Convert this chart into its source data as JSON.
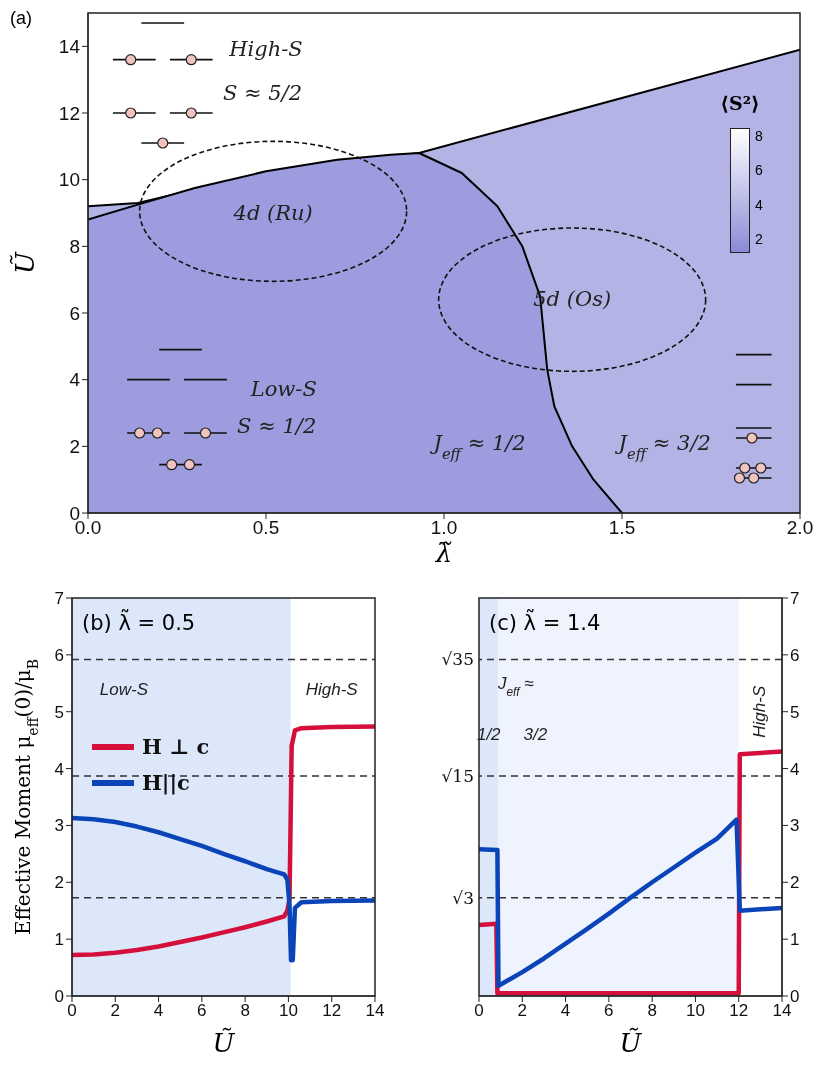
{
  "chart_data": [
    {
      "type": "area",
      "title": "(a)",
      "xlabel": "λ̃",
      "ylabel": "Ũ",
      "xlim": [
        0,
        2
      ],
      "ylim": [
        0,
        15
      ],
      "xticks": [
        {
          "value": 0,
          "label": "0.0"
        },
        {
          "value": 0.5,
          "label": "0.5"
        },
        {
          "value": 1,
          "label": "1.0"
        },
        {
          "value": 1.5,
          "label": "1.5"
        },
        {
          "value": 2,
          "label": "2.0"
        }
      ],
      "yticks": [
        0,
        2,
        4,
        6,
        8,
        10,
        12,
        14
      ],
      "series": [
        {
          "color": "#b3b3e6",
          "x": [
            0,
            0.14,
            0.5,
            0.93,
            2
          ],
          "values": [
            9.2,
            9.3,
            10.2,
            10.8,
            13.9
          ]
        },
        {
          "color": "#9c9cde",
          "x": [
            0,
            0.14,
            0.3,
            0.5,
            0.7,
            0.85,
            0.93,
            1.05,
            1.15,
            1.22,
            1.27,
            1.29,
            1.31,
            1.36,
            1.42,
            1.5
          ],
          "values": [
            8.8,
            9.25,
            9.75,
            10.25,
            10.6,
            10.75,
            10.8,
            10.2,
            9.2,
            8,
            6.5,
            4.3,
            3.2,
            2.0,
            1.0,
            0
          ]
        }
      ],
      "annotations": [
        "High-S",
        "S ≈ 5/2",
        "4d (Ru)",
        "5d (Os)",
        "Low-S",
        "S ≈ 1/2",
        "J$_{eff}$ ≈ 1/2",
        "J$_{eff}$ ≈ 3/2",
        "⟨S²⟩",
        "8",
        "6",
        "4",
        "2"
      ]
    },
    {
      "type": "line",
      "title": "(b) λ̃ = 0.5",
      "xlabel": "Ũ",
      "ylabel": "Effective Moment μ$_{eff}$(0)/μ$_{B}$",
      "xlim": [
        0,
        14
      ],
      "ylim": [
        0,
        7
      ],
      "xticks": [
        0,
        2,
        4,
        6,
        8,
        10,
        12,
        14
      ],
      "yticks": [
        0,
        1,
        2,
        3,
        4,
        5,
        6,
        7
      ],
      "legend": "left",
      "bands": [
        {
          "axis": "x",
          "from": 0,
          "to": 10.1,
          "color": "#dce8fa"
        }
      ],
      "ref_lines": [
        {
          "axis": "y",
          "value": 5.92,
          "color": "#333333",
          "line_style": "dashed"
        },
        {
          "axis": "y",
          "value": 3.87,
          "color": "#333333",
          "line_style": "dashed"
        },
        {
          "axis": "y",
          "value": 1.73,
          "color": "#333333",
          "line_style": "dashed"
        }
      ],
      "series": [
        {
          "name": "H ⊥ c",
          "color": "#d40f3c",
          "x": [
            0,
            1,
            2,
            3,
            4,
            5,
            6,
            7,
            8,
            9,
            9.8,
            9.95,
            10.05,
            10.15,
            10.3,
            10.6,
            12,
            14
          ],
          "values": [
            0.72,
            0.73,
            0.76,
            0.81,
            0.87,
            0.95,
            1.03,
            1.12,
            1.21,
            1.31,
            1.4,
            1.5,
            1.7,
            4.4,
            4.67,
            4.71,
            4.73,
            4.74
          ]
        },
        {
          "name": "H||c",
          "color": "#0a44b8",
          "x": [
            0,
            1,
            2,
            3,
            4,
            5,
            6,
            7,
            8,
            9,
            9.8,
            9.95,
            10.05,
            10.12,
            10.2,
            10.3,
            10.6,
            12,
            14
          ],
          "values": [
            3.13,
            3.11,
            3.06,
            2.98,
            2.88,
            2.76,
            2.64,
            2.5,
            2.37,
            2.23,
            2.14,
            2.05,
            1.6,
            0.63,
            0.63,
            1.55,
            1.65,
            1.67,
            1.68
          ]
        }
      ],
      "annotations": [
        "Low-S",
        "High-S"
      ]
    },
    {
      "type": "line",
      "title": "(c) λ̃ = 1.4",
      "xlabel": "Ũ",
      "xlim": [
        0,
        14
      ],
      "xticks": [
        0,
        2,
        4,
        6,
        8,
        10,
        12,
        14
      ],
      "y2lim": [
        0,
        7
      ],
      "y2ticks": [
        0,
        1,
        2,
        3,
        4,
        5,
        6,
        7
      ],
      "bands": [
        {
          "axis": "x",
          "from": 0,
          "to": 0.9,
          "color": "#dce8fa"
        },
        {
          "axis": "x",
          "from": 0.9,
          "to": 12,
          "color": "#eff3fd"
        }
      ],
      "ref_lines": [
        {
          "axis": "y2",
          "value": 5.92,
          "label": "√35",
          "color": "#333333",
          "line_style": "dashed"
        },
        {
          "axis": "y2",
          "value": 3.87,
          "label": "√15",
          "color": "#333333",
          "line_style": "dashed"
        },
        {
          "axis": "y2",
          "value": 1.73,
          "label": "√3",
          "color": "#333333",
          "line_style": "dashed"
        }
      ],
      "series": [
        {
          "color": "#d40f3c",
          "axis": "y2",
          "x": [
            0,
            0.8,
            0.85,
            12,
            12.05,
            14
          ],
          "values": [
            1.25,
            1.27,
            0.05,
            0.05,
            4.25,
            4.3
          ]
        },
        {
          "color": "#0a44b8",
          "axis": "y2",
          "x": [
            0,
            0.85,
            0.9,
            2,
            3,
            4,
            5,
            6,
            7,
            8,
            9,
            10,
            11,
            11.9,
            12.05,
            14
          ],
          "values": [
            2.58,
            2.57,
            0.18,
            0.42,
            0.66,
            0.92,
            1.18,
            1.45,
            1.73,
            2.0,
            2.26,
            2.52,
            2.77,
            3.1,
            1.5,
            1.55
          ]
        }
      ],
      "annotations": [
        "J$_{eff}$ ≈",
        "1/2",
        "3/2",
        "High-S"
      ]
    }
  ]
}
